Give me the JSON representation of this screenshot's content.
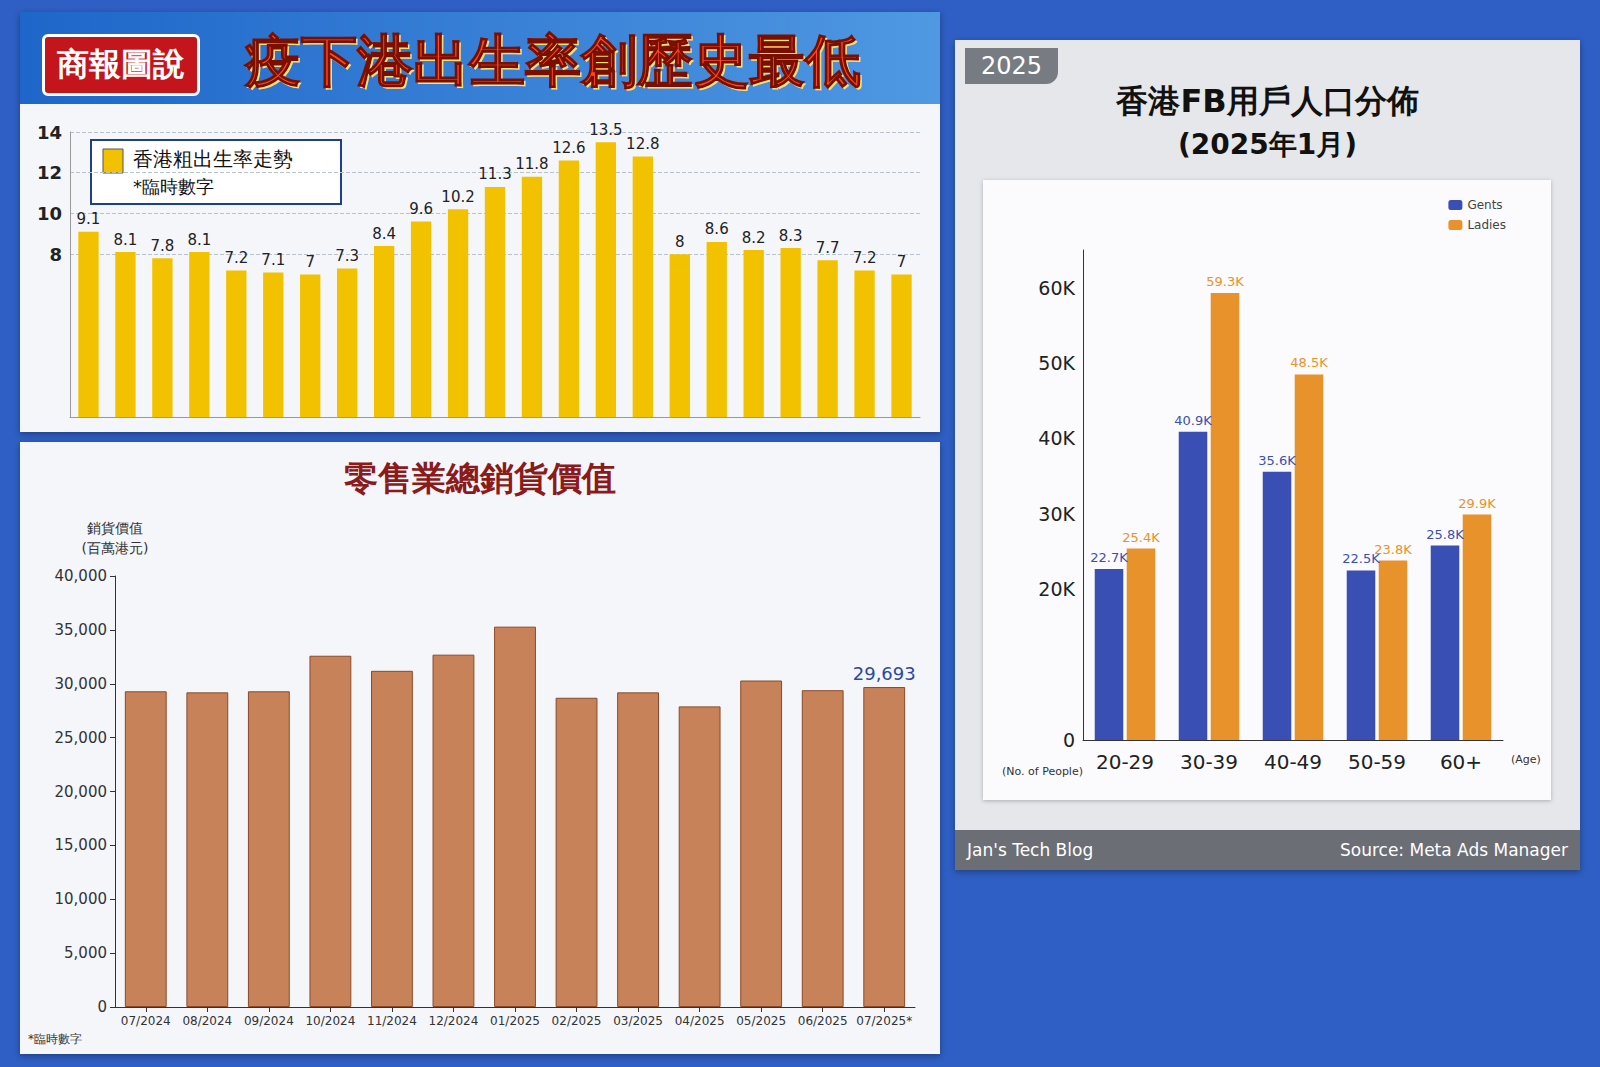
{
  "chart_data": [
    {
      "type": "bar",
      "badge": "商報圖說",
      "title": "疫下港出生率創歷史最低",
      "note": "*臨時數字",
      "categories": [
        null,
        null,
        null,
        null,
        null,
        null,
        null,
        null,
        null,
        null,
        null,
        null,
        null,
        null,
        null,
        null,
        null,
        null,
        null,
        null,
        null,
        null,
        null
      ],
      "series": [
        {
          "name": "香港粗出生率走勢",
          "color": "#f2c200",
          "values": [
            9.1,
            8.1,
            7.8,
            8.1,
            7.2,
            7.1,
            7,
            7.3,
            8.4,
            9.6,
            10.2,
            11.3,
            11.8,
            12.6,
            13.5,
            12.8,
            8,
            8.6,
            8.2,
            8.3,
            7.7,
            7.2,
            7
          ]
        }
      ],
      "ylim": [
        0,
        14
      ],
      "yticks": [
        8,
        10,
        12,
        14
      ],
      "grid": true,
      "legend": "upper left",
      "data_labels": true,
      "tick_labels": "y"
    },
    {
      "type": "bar",
      "title": "零售業總銷貨價值",
      "y_label": "銷貨價值 (百萬港元)",
      "note": "*臨時數字",
      "categories": [
        "07/2024",
        "08/2024",
        "09/2024",
        "10/2024",
        "11/2024",
        "12/2024",
        "01/2025",
        "02/2025",
        "03/2025",
        "04/2025",
        "05/2025",
        "06/2025",
        "07/2025*"
      ],
      "values": [
        29300,
        29200,
        29300,
        32600,
        31200,
        32700,
        35300,
        28700,
        29200,
        27900,
        30300,
        29400,
        29693
      ],
      "value_labels": [
        null,
        null,
        null,
        null,
        null,
        null,
        null,
        null,
        null,
        null,
        null,
        null,
        "29,693"
      ],
      "color": "#c8825a",
      "ylim": [
        0,
        40000
      ],
      "yticks": [
        0,
        {
          "value": 5000,
          "label": "5,000"
        },
        {
          "value": 10000,
          "label": "10,000"
        },
        {
          "value": 15000,
          "label": "15,000"
        },
        {
          "value": 20000,
          "label": "20,000"
        },
        {
          "value": 25000,
          "label": "25,000"
        },
        {
          "value": 30000,
          "label": "30,000"
        },
        {
          "value": 35000,
          "label": "35,000"
        },
        {
          "value": 40000,
          "label": "40,000"
        }
      ],
      "grid": false,
      "data_labels": true
    },
    {
      "type": "bar",
      "tag": "2025",
      "title": "香港FB用戶人口分佈",
      "subtitle": "(2025年1月)",
      "x_label": "(Age)",
      "y_label": "(No. of People)",
      "footer": [
        "Jan's Tech Blog",
        "Source: Meta Ads Manager"
      ],
      "categories": [
        "20-29",
        "30-39",
        "40-49",
        "50-59",
        "60+"
      ],
      "series": [
        {
          "name": "Gents",
          "color": "#3a4fb3",
          "values": [
            22700,
            40900,
            35600,
            22500,
            25800
          ],
          "value_labels": [
            "22.7K",
            "40.9K",
            "35.6K",
            "22.5K",
            "25.8K"
          ]
        },
        {
          "name": "Ladies",
          "color": "#e8922c",
          "values": [
            25400,
            59300,
            48500,
            23800,
            29900
          ],
          "value_labels": [
            "25.4K",
            "59.3K",
            "48.5K",
            "23.8K",
            "29.9K"
          ]
        }
      ],
      "ylim": [
        0,
        65000
      ],
      "yticks": [
        0,
        {
          "value": 20000,
          "label": "20K"
        },
        {
          "value": 30000,
          "label": "30K"
        },
        {
          "value": 40000,
          "label": "40K"
        },
        {
          "value": 50000,
          "label": "50K"
        },
        {
          "value": 60000,
          "label": "60K"
        }
      ],
      "grid": false,
      "legend": "upper right",
      "data_labels": true
    }
  ]
}
